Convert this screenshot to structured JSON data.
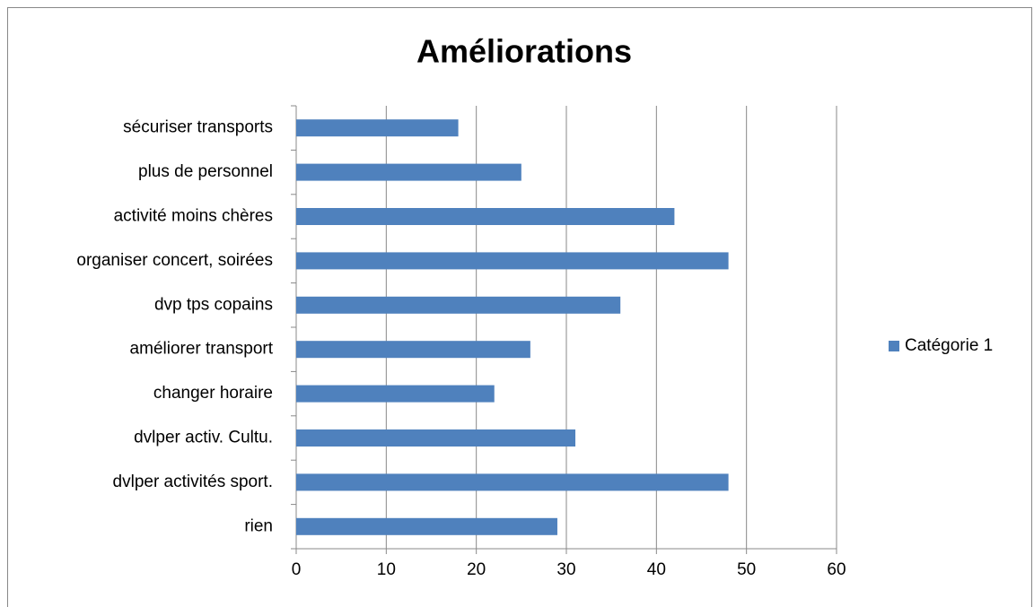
{
  "chart_data": {
    "type": "bar",
    "orientation": "horizontal",
    "title": "Améliorations",
    "categories": [
      "rien",
      "dvlper activités sport.",
      "dvlper activ. Cultu.",
      "changer horaire",
      "améliorer transport",
      "dvp tps copains",
      "organiser concert, soirées",
      "activité moins chères",
      "plus de personnel",
      "sécuriser transports"
    ],
    "series": [
      {
        "name": "Catégorie 1",
        "color": "#4f81bd",
        "values": [
          29,
          48,
          31,
          22,
          26,
          36,
          48,
          42,
          25,
          18
        ]
      }
    ],
    "xlim": [
      0,
      60
    ],
    "xticks": [
      0,
      10,
      20,
      30,
      40,
      50,
      60
    ],
    "grid": true,
    "legend": "right"
  }
}
